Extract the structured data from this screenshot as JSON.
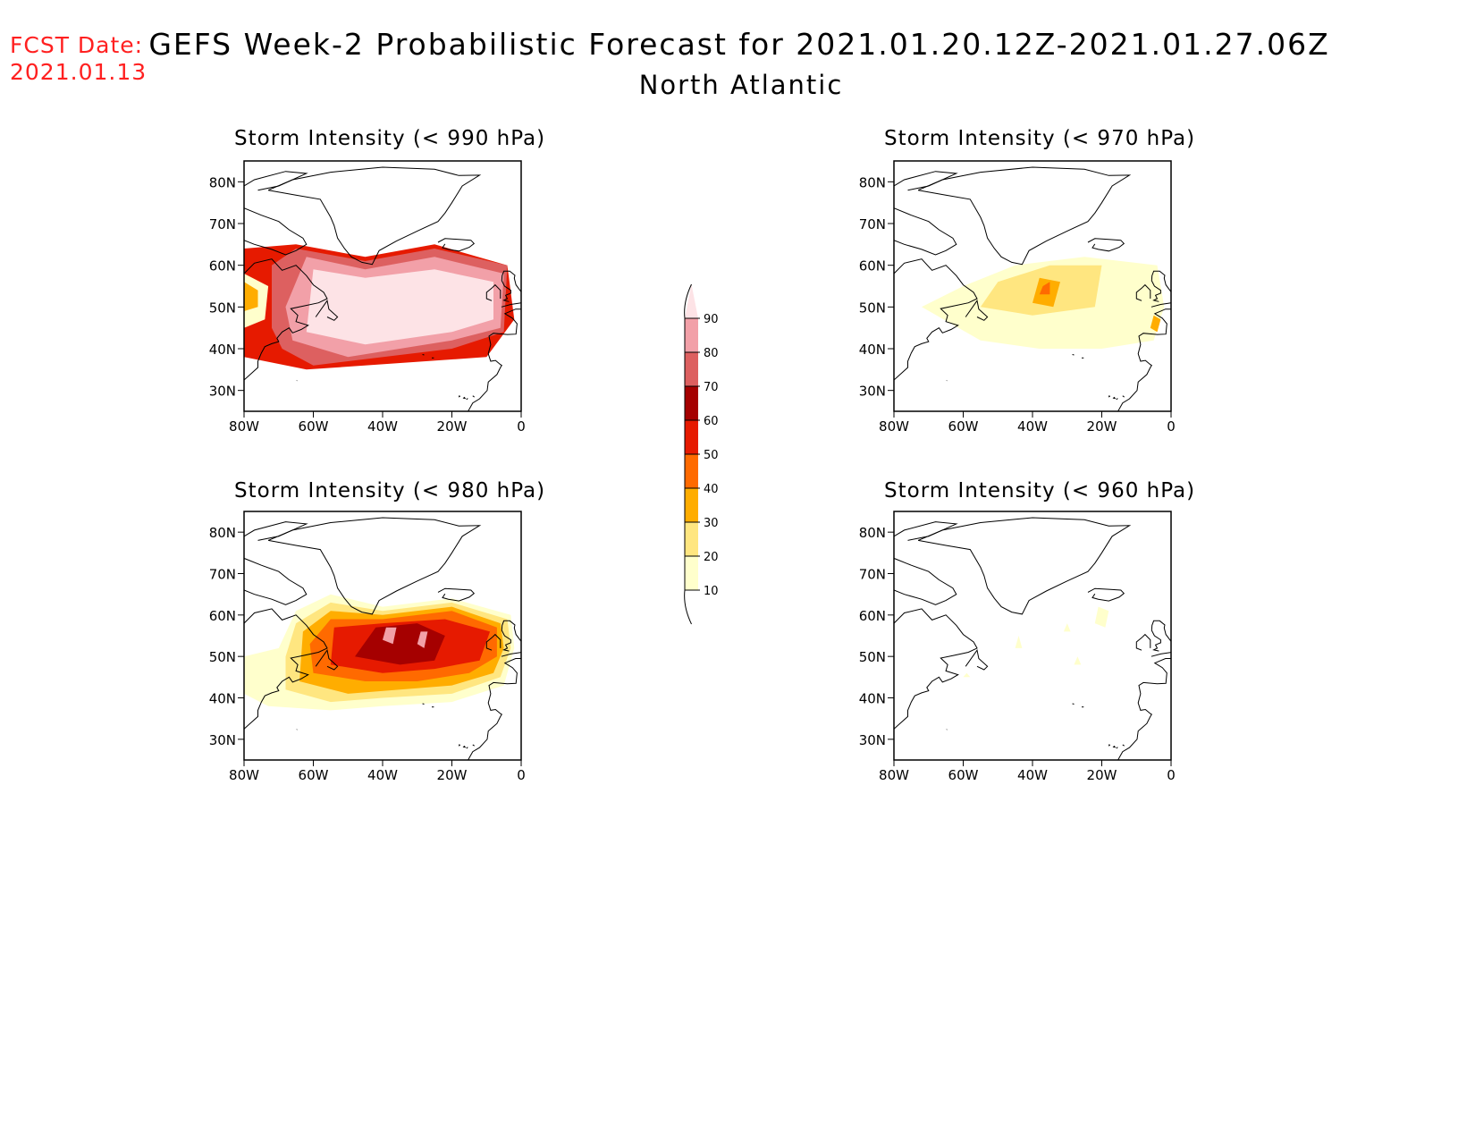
{
  "header": {
    "fcst_label": "FCST Date:",
    "fcst_date": "2021.01.13",
    "title": "GEFS Week-2 Probabilistic Forecast for 2021.01.20.12Z-2021.01.27.06Z",
    "region": "North Atlantic"
  },
  "axes": {
    "lat_labels": [
      "80N",
      "70N",
      "60N",
      "50N",
      "40N",
      "30N"
    ],
    "lat_values": [
      80,
      70,
      60,
      50,
      40,
      30
    ],
    "lon_labels": [
      "80W",
      "60W",
      "40W",
      "20W",
      "0"
    ],
    "lon_values": [
      -80,
      -60,
      -40,
      -20,
      0
    ],
    "lat_range": [
      25,
      85
    ],
    "lon_range": [
      -80,
      0
    ]
  },
  "colorbar": {
    "levels": [
      "10",
      "20",
      "30",
      "40",
      "50",
      "60",
      "70",
      "80",
      "90"
    ],
    "colors": [
      "#ffffcc",
      "#ffe680",
      "#ffad00",
      "#ff6a00",
      "#e61a00",
      "#a50000",
      "#dd6060",
      "#f2a0a8",
      "#fde3e6"
    ]
  },
  "panels": [
    {
      "title": "Storm Intensity (< 990 hPa)",
      "regions": [
        {
          "level": 4,
          "poly": [
            [
              -80,
              38
            ],
            [
              -62,
              35
            ],
            [
              -10,
              38
            ],
            [
              -2,
              47
            ],
            [
              -4,
              60
            ],
            [
              -25,
              65
            ],
            [
              -45,
              62
            ],
            [
              -65,
              65
            ],
            [
              -80,
              64
            ]
          ]
        },
        {
          "level": 6,
          "poly": [
            [
              -69,
              40
            ],
            [
              -60,
              36
            ],
            [
              -20,
              40
            ],
            [
              -5,
              44
            ],
            [
              -4,
              60
            ],
            [
              -25,
              64
            ],
            [
              -45,
              61
            ],
            [
              -65,
              64
            ],
            [
              -72,
              60
            ],
            [
              -72,
              45
            ]
          ]
        },
        {
          "level": 7,
          "poly": [
            [
              -66,
              42
            ],
            [
              -50,
              38
            ],
            [
              -20,
              42
            ],
            [
              -6,
              45
            ],
            [
              -5,
              58
            ],
            [
              -25,
              62
            ],
            [
              -45,
              59
            ],
            [
              -62,
              62
            ],
            [
              -68,
              50
            ]
          ]
        },
        {
          "level": 8,
          "poly": [
            [
              -62,
              44
            ],
            [
              -45,
              41
            ],
            [
              -20,
              44
            ],
            [
              -8,
              47
            ],
            [
              -8,
              56
            ],
            [
              -25,
              59
            ],
            [
              -45,
              57
            ],
            [
              -60,
              59
            ]
          ]
        },
        {
          "level": 0,
          "poly": [
            [
              -80,
              45
            ],
            [
              -74,
              47
            ],
            [
              -73,
              55
            ],
            [
              -80,
              58
            ]
          ]
        },
        {
          "level": 2,
          "poly": [
            [
              -80,
              49
            ],
            [
              -76,
              50
            ],
            [
              -76,
              54
            ],
            [
              -80,
              56
            ]
          ]
        }
      ]
    },
    {
      "title": "Storm Intensity (< 970 hPa)",
      "regions": [
        {
          "level": 0,
          "poly": [
            [
              -72,
              50
            ],
            [
              -55,
              42
            ],
            [
              -38,
              40
            ],
            [
              -20,
              40
            ],
            [
              -5,
              42
            ],
            [
              -2,
              50
            ],
            [
              -4,
              60
            ],
            [
              -25,
              62
            ],
            [
              -45,
              60
            ],
            [
              -60,
              55
            ]
          ]
        },
        {
          "level": 1,
          "poly": [
            [
              -55,
              50
            ],
            [
              -40,
              48
            ],
            [
              -22,
              50
            ],
            [
              -20,
              60
            ],
            [
              -35,
              60
            ],
            [
              -50,
              56
            ]
          ]
        },
        {
          "level": 2,
          "poly": [
            [
              -40,
              51
            ],
            [
              -34,
              50
            ],
            [
              -32,
              56
            ],
            [
              -38,
              57
            ]
          ]
        },
        {
          "level": 3,
          "poly": [
            [
              -38,
              53
            ],
            [
              -35,
              53
            ],
            [
              -35,
              56
            ],
            [
              -37,
              55
            ]
          ]
        },
        {
          "level": 2,
          "poly": [
            [
              -6,
              45
            ],
            [
              -4,
              44
            ],
            [
              -3,
              47
            ],
            [
              -5,
              48
            ]
          ]
        }
      ]
    },
    {
      "title": "Storm Intensity (< 980 hPa)",
      "regions": [
        {
          "level": 0,
          "poly": [
            [
              -80,
              41
            ],
            [
              -73,
              38
            ],
            [
              -55,
              37
            ],
            [
              -40,
              38
            ],
            [
              -20,
              39
            ],
            [
              -5,
              43
            ],
            [
              -2,
              52
            ],
            [
              -3,
              60
            ],
            [
              -20,
              64
            ],
            [
              -40,
              62
            ],
            [
              -55,
              65
            ],
            [
              -65,
              61
            ],
            [
              -70,
              52
            ],
            [
              -80,
              50
            ]
          ]
        },
        {
          "level": 1,
          "poly": [
            [
              -68,
              42
            ],
            [
              -55,
              39
            ],
            [
              -40,
              40
            ],
            [
              -20,
              41
            ],
            [
              -6,
              45
            ],
            [
              -3,
              52
            ],
            [
              -4,
              59
            ],
            [
              -20,
              63
            ],
            [
              -40,
              61
            ],
            [
              -55,
              63
            ],
            [
              -65,
              58
            ],
            [
              -68,
              50
            ]
          ]
        },
        {
          "level": 2,
          "poly": [
            [
              -64,
              44
            ],
            [
              -50,
              41
            ],
            [
              -35,
              42
            ],
            [
              -20,
              43
            ],
            [
              -8,
              46
            ],
            [
              -5,
              52
            ],
            [
              -6,
              58
            ],
            [
              -20,
              62
            ],
            [
              -40,
              60
            ],
            [
              -55,
              61
            ],
            [
              -63,
              56
            ]
          ]
        },
        {
          "level": 3,
          "poly": [
            [
              -60,
              46
            ],
            [
              -45,
              44
            ],
            [
              -30,
              44
            ],
            [
              -15,
              46
            ],
            [
              -7,
              50
            ],
            [
              -7,
              57
            ],
            [
              -20,
              61
            ],
            [
              -40,
              59
            ],
            [
              -55,
              59
            ],
            [
              -61,
              53
            ]
          ]
        },
        {
          "level": 4,
          "poly": [
            [
              -55,
              48
            ],
            [
              -40,
              46
            ],
            [
              -25,
              47
            ],
            [
              -12,
              49
            ],
            [
              -9,
              56
            ],
            [
              -22,
              59
            ],
            [
              -40,
              58
            ],
            [
              -54,
              57
            ]
          ]
        },
        {
          "level": 5,
          "poly": [
            [
              -48,
              50
            ],
            [
              -35,
              48
            ],
            [
              -25,
              49
            ],
            [
              -22,
              55
            ],
            [
              -30,
              58
            ],
            [
              -42,
              57
            ]
          ]
        },
        {
          "level": 7,
          "poly": [
            [
              -40,
              54
            ],
            [
              -37,
              53
            ],
            [
              -36,
              57
            ],
            [
              -39,
              57
            ]
          ]
        },
        {
          "level": 7,
          "poly": [
            [
              -30,
              53
            ],
            [
              -28,
              52
            ],
            [
              -27,
              56
            ],
            [
              -29,
              56
            ]
          ]
        }
      ]
    },
    {
      "title": "Storm Intensity (< 960 hPa)",
      "regions": [
        {
          "level": 0,
          "poly": [
            [
              -22,
              58
            ],
            [
              -19,
              57
            ],
            [
              -18,
              61
            ],
            [
              -21,
              62
            ]
          ]
        },
        {
          "level": 0,
          "poly": [
            [
              -31,
              56
            ],
            [
              -29,
              56
            ],
            [
              -30,
              58
            ]
          ]
        },
        {
          "level": 0,
          "poly": [
            [
              -45,
              52
            ],
            [
              -43,
              52
            ],
            [
              -44,
              55
            ]
          ]
        },
        {
          "level": 0,
          "poly": [
            [
              -28,
              48
            ],
            [
              -26,
              48
            ],
            [
              -27,
              50
            ]
          ]
        },
        {
          "level": 0,
          "poly": [
            [
              -60,
              45
            ],
            [
              -58,
              45
            ],
            [
              -59,
              46
            ]
          ]
        }
      ]
    }
  ]
}
